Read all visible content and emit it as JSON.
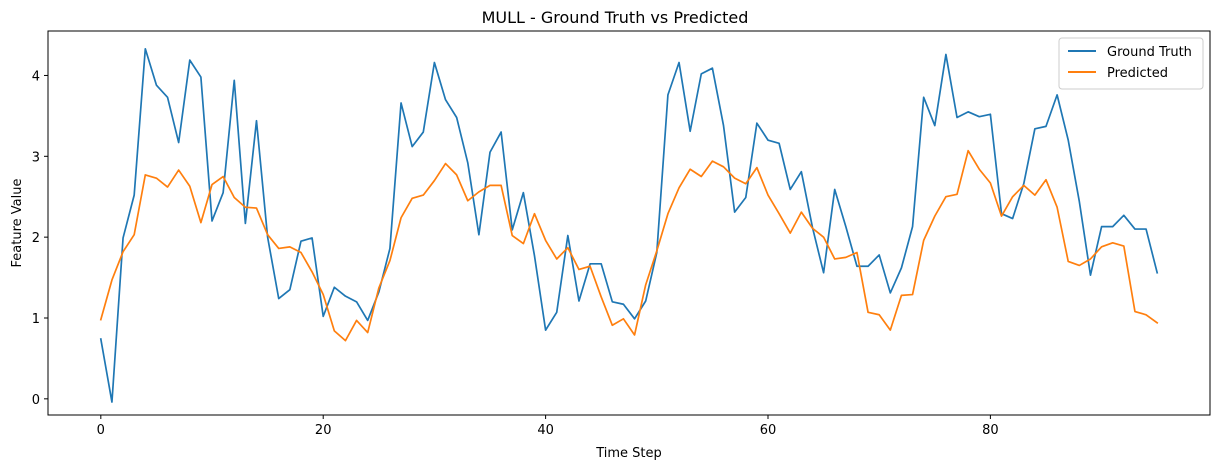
{
  "chart_data": {
    "type": "line",
    "title": "MULL - Ground Truth vs Predicted",
    "xlabel": "Time Step",
    "ylabel": "Feature Value",
    "xlim": [
      -4.75,
      99.75
    ],
    "ylim": [
      -0.2,
      4.55
    ],
    "xticks": [
      0,
      20,
      40,
      60,
      80
    ],
    "yticks": [
      0,
      1,
      2,
      3,
      4
    ],
    "grid": false,
    "legend_position": "top-right",
    "x": [
      0,
      1,
      2,
      3,
      4,
      5,
      6,
      7,
      8,
      9,
      10,
      11,
      12,
      13,
      14,
      15,
      16,
      17,
      18,
      19,
      20,
      21,
      22,
      23,
      24,
      25,
      26,
      27,
      28,
      29,
      30,
      31,
      32,
      33,
      34,
      35,
      36,
      37,
      38,
      39,
      40,
      41,
      42,
      43,
      44,
      45,
      46,
      47,
      48,
      49,
      50,
      51,
      52,
      53,
      54,
      55,
      56,
      57,
      58,
      59,
      60,
      61,
      62,
      63,
      64,
      65,
      66,
      67,
      68,
      69,
      70,
      71,
      72,
      73,
      74,
      75,
      76,
      77,
      78,
      79,
      80,
      81,
      82,
      83,
      84,
      85,
      86,
      87,
      88,
      89,
      90,
      91,
      92,
      93,
      94,
      95
    ],
    "series": [
      {
        "name": "Ground Truth",
        "color": "#1f77b4",
        "values": [
          0.74,
          -0.04,
          1.99,
          2.52,
          4.33,
          3.88,
          3.73,
          3.17,
          4.19,
          3.98,
          2.2,
          2.55,
          3.94,
          2.17,
          3.44,
          2.0,
          1.24,
          1.35,
          1.95,
          1.99,
          1.02,
          1.38,
          1.27,
          1.2,
          0.97,
          1.32,
          1.86,
          3.66,
          3.12,
          3.3,
          4.16,
          3.7,
          3.48,
          2.92,
          2.03,
          3.05,
          3.3,
          2.09,
          2.55,
          1.77,
          0.85,
          1.07,
          2.02,
          1.21,
          1.67,
          1.67,
          1.2,
          1.17,
          0.99,
          1.21,
          1.81,
          3.76,
          4.16,
          3.31,
          4.02,
          4.09,
          3.38,
          2.31,
          2.49,
          3.41,
          3.2,
          3.16,
          2.59,
          2.81,
          2.12,
          1.56,
          2.59,
          2.13,
          1.64,
          1.64,
          1.78,
          1.31,
          1.62,
          2.13,
          3.73,
          3.38,
          4.26,
          3.48,
          3.55,
          3.49,
          3.52,
          2.29,
          2.23,
          2.66,
          3.34,
          3.37,
          3.76,
          3.2,
          2.44,
          1.53,
          2.13,
          2.13,
          2.27,
          2.1,
          2.1,
          1.56
        ]
      },
      {
        "name": "Predicted",
        "color": "#ff7f0e",
        "values": [
          0.98,
          1.47,
          1.82,
          2.03,
          2.77,
          2.73,
          2.62,
          2.83,
          2.63,
          2.18,
          2.65,
          2.75,
          2.49,
          2.37,
          2.36,
          2.03,
          1.86,
          1.88,
          1.81,
          1.57,
          1.29,
          0.84,
          0.72,
          0.97,
          0.82,
          1.37,
          1.71,
          2.24,
          2.48,
          2.52,
          2.7,
          2.91,
          2.77,
          2.45,
          2.56,
          2.64,
          2.64,
          2.02,
          1.92,
          2.29,
          1.96,
          1.73,
          1.87,
          1.6,
          1.64,
          1.26,
          0.91,
          0.99,
          0.79,
          1.41,
          1.83,
          2.29,
          2.61,
          2.84,
          2.75,
          2.94,
          2.87,
          2.73,
          2.66,
          2.86,
          2.52,
          2.29,
          2.05,
          2.31,
          2.11,
          2.0,
          1.73,
          1.75,
          1.81,
          1.07,
          1.04,
          0.85,
          1.28,
          1.29,
          1.96,
          2.26,
          2.5,
          2.53,
          3.07,
          2.84,
          2.67,
          2.26,
          2.5,
          2.64,
          2.52,
          2.71,
          2.37,
          1.7,
          1.65,
          1.73,
          1.88,
          1.93,
          1.89,
          1.08,
          1.04,
          0.94
        ]
      }
    ]
  }
}
